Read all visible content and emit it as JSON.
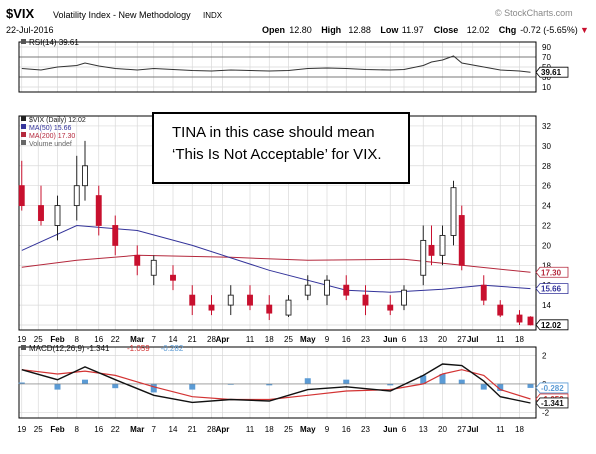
{
  "header": {
    "symbol": "$VIX",
    "name": "Volatility Index - New Methodology",
    "exchange": "INDX",
    "date": "22-Jul-2016",
    "watermark": "© StockCharts.com",
    "stats": [
      {
        "label": "Open",
        "value": "12.80"
      },
      {
        "label": "High",
        "value": "12.88"
      },
      {
        "label": "Low",
        "value": "11.97"
      },
      {
        "label": "Close",
        "value": "12.02"
      },
      {
        "label": "Chg",
        "value": "-0.72 (-5.65%)"
      }
    ],
    "down_marker": "▼"
  },
  "annotation": {
    "line1": "TINA in this case should mean",
    "line2": "‘This Is Not Acceptable’ for VIX."
  },
  "colors": {
    "up": "#222222",
    "down": "#c8102e",
    "ma50": "#33339a",
    "ma200": "#b4283c",
    "macd": "#111111",
    "signal": "#d33333",
    "histogram": "#5b9bd5",
    "rsi": "#333333",
    "grid": "#d9d9d9"
  },
  "chart_data": [
    {
      "type": "line",
      "panel": "RSI",
      "legend": "RSI(14) 39.61",
      "ylim": [
        0,
        100
      ],
      "yticks": [
        10,
        30,
        50,
        70,
        90
      ],
      "reference_lines": [
        30,
        70
      ],
      "last_label": "39.61",
      "series": [
        {
          "name": "RSI(14)",
          "x": [
            "2016-01-19",
            "2016-01-26",
            "2016-02-01",
            "2016-02-08",
            "2016-02-11",
            "2016-02-16",
            "2016-02-22",
            "2016-03-01",
            "2016-03-07",
            "2016-03-14",
            "2016-03-21",
            "2016-03-28",
            "2016-04-04",
            "2016-04-11",
            "2016-04-18",
            "2016-04-25",
            "2016-05-02",
            "2016-05-09",
            "2016-05-16",
            "2016-05-23",
            "2016-06-01",
            "2016-06-06",
            "2016-06-13",
            "2016-06-16",
            "2016-06-20",
            "2016-06-24",
            "2016-06-27",
            "2016-07-05",
            "2016-07-11",
            "2016-07-18",
            "2016-07-22"
          ],
          "values": [
            47,
            44,
            50,
            53,
            58,
            52,
            47,
            44,
            47,
            45,
            43,
            42,
            44,
            43,
            42,
            43,
            47,
            48,
            47,
            45,
            44,
            45,
            53,
            60,
            64,
            72,
            58,
            50,
            44,
            42,
            39.61
          ]
        }
      ]
    },
    {
      "type": "candlestick",
      "panel": "Price",
      "legend": [
        {
          "label": "$VIX (Daily) 12.02",
          "color": "#222222"
        },
        {
          "label": "MA(50) 15.66",
          "color": "#33339a"
        },
        {
          "label": "MA(200) 17.30",
          "color": "#b4283c"
        },
        {
          "label": "Volume undef",
          "color": "#666666"
        }
      ],
      "ylim": [
        11.5,
        33
      ],
      "yticks": [
        12,
        14,
        16,
        18,
        20,
        22,
        24,
        26,
        28,
        30,
        32
      ],
      "price_labels": [
        {
          "text": "17.30",
          "value": 17.3,
          "color": "#b4283c"
        },
        {
          "text": "15.66",
          "value": 15.66,
          "color": "#33339a"
        },
        {
          "text": "12.02",
          "value": 12.02,
          "color": "#000000"
        }
      ],
      "candles": [
        {
          "d": "2016-01-19",
          "o": 26,
          "h": 28.5,
          "l": 23.5,
          "c": 24
        },
        {
          "d": "2016-01-26",
          "o": 24,
          "h": 26,
          "l": 22,
          "c": 22.5
        },
        {
          "d": "2016-02-01",
          "o": 22,
          "h": 25,
          "l": 20.5,
          "c": 24
        },
        {
          "d": "2016-02-08",
          "o": 24,
          "h": 29,
          "l": 22.5,
          "c": 26
        },
        {
          "d": "2016-02-11",
          "o": 26,
          "h": 30.5,
          "l": 24.5,
          "c": 28
        },
        {
          "d": "2016-02-16",
          "o": 25,
          "h": 26,
          "l": 21,
          "c": 22
        },
        {
          "d": "2016-02-22",
          "o": 22,
          "h": 23,
          "l": 19,
          "c": 20
        },
        {
          "d": "2016-03-01",
          "o": 19,
          "h": 20,
          "l": 17,
          "c": 18
        },
        {
          "d": "2016-03-07",
          "o": 17,
          "h": 19,
          "l": 16,
          "c": 18.5
        },
        {
          "d": "2016-03-14",
          "o": 17,
          "h": 18,
          "l": 15.5,
          "c": 16.5
        },
        {
          "d": "2016-03-21",
          "o": 15,
          "h": 16,
          "l": 13,
          "c": 14
        },
        {
          "d": "2016-03-28",
          "o": 14,
          "h": 15,
          "l": 13,
          "c": 13.5
        },
        {
          "d": "2016-04-04",
          "o": 14,
          "h": 16,
          "l": 13,
          "c": 15
        },
        {
          "d": "2016-04-11",
          "o": 15,
          "h": 16,
          "l": 13.5,
          "c": 14
        },
        {
          "d": "2016-04-18",
          "o": 14,
          "h": 15,
          "l": 12.5,
          "c": 13.2
        },
        {
          "d": "2016-04-25",
          "o": 13,
          "h": 15,
          "l": 12.8,
          "c": 14.5
        },
        {
          "d": "2016-05-02",
          "o": 15,
          "h": 17,
          "l": 14.5,
          "c": 16
        },
        {
          "d": "2016-05-09",
          "o": 15,
          "h": 17,
          "l": 14,
          "c": 16.5
        },
        {
          "d": "2016-05-16",
          "o": 16,
          "h": 17,
          "l": 14.5,
          "c": 15
        },
        {
          "d": "2016-05-23",
          "o": 15,
          "h": 16,
          "l": 13,
          "c": 14
        },
        {
          "d": "2016-06-01",
          "o": 14,
          "h": 15,
          "l": 13,
          "c": 13.5
        },
        {
          "d": "2016-06-06",
          "o": 14,
          "h": 16,
          "l": 13.5,
          "c": 15.5
        },
        {
          "d": "2016-06-13",
          "o": 17,
          "h": 22,
          "l": 16,
          "c": 20.5
        },
        {
          "d": "2016-06-16",
          "o": 20,
          "h": 22,
          "l": 18,
          "c": 19
        },
        {
          "d": "2016-06-20",
          "o": 19,
          "h": 22,
          "l": 18,
          "c": 21
        },
        {
          "d": "2016-06-24",
          "o": 21,
          "h": 26.5,
          "l": 20,
          "c": 25.8
        },
        {
          "d": "2016-06-27",
          "o": 23,
          "h": 24,
          "l": 17.5,
          "c": 18
        },
        {
          "d": "2016-07-05",
          "o": 16,
          "h": 17,
          "l": 14,
          "c": 14.5
        },
        {
          "d": "2016-07-11",
          "o": 14,
          "h": 14.5,
          "l": 12.8,
          "c": 13
        },
        {
          "d": "2016-07-18",
          "o": 13,
          "h": 13.5,
          "l": 12,
          "c": 12.3
        },
        {
          "d": "2016-07-22",
          "o": 12.8,
          "h": 12.88,
          "l": 11.97,
          "c": 12.02
        }
      ],
      "ma50": {
        "x": [
          "2016-01-19",
          "2016-02-08",
          "2016-03-01",
          "2016-03-21",
          "2016-04-18",
          "2016-05-16",
          "2016-06-01",
          "2016-06-20",
          "2016-07-05",
          "2016-07-22"
        ],
        "values": [
          19.5,
          22,
          21.5,
          20,
          17.5,
          15.5,
          15.3,
          15.6,
          16,
          15.66
        ]
      },
      "ma200": {
        "x": [
          "2016-01-19",
          "2016-02-08",
          "2016-03-01",
          "2016-04-04",
          "2016-05-02",
          "2016-06-06",
          "2016-06-27",
          "2016-07-22"
        ],
        "values": [
          17.8,
          18.5,
          19,
          18.8,
          18.5,
          18.6,
          18,
          17.3
        ]
      }
    },
    {
      "type": "line",
      "panel": "MACD",
      "legend": [
        {
          "label": "MACD(12,26,9) -1.341",
          "color": "#111111"
        },
        {
          "label": "-1.059",
          "color": "#d33333"
        },
        {
          "label": "-0.282",
          "color": "#5b9bd5"
        }
      ],
      "ylim": [
        -2.4,
        2.6
      ],
      "yticks": [
        -2,
        0,
        2
      ],
      "value_labels": [
        {
          "text": "-0.282",
          "value": -0.282,
          "color": "#5b9bd5"
        },
        {
          "text": "-1.059",
          "value": -1.059,
          "color": "#d33333"
        },
        {
          "text": "-1.341",
          "value": -1.341,
          "color": "#111111"
        }
      ],
      "x": [
        "2016-01-19",
        "2016-02-01",
        "2016-02-11",
        "2016-02-22",
        "2016-03-07",
        "2016-03-21",
        "2016-04-04",
        "2016-04-18",
        "2016-05-02",
        "2016-05-16",
        "2016-06-01",
        "2016-06-13",
        "2016-06-20",
        "2016-06-27",
        "2016-07-05",
        "2016-07-11",
        "2016-07-22"
      ],
      "series": [
        {
          "name": "MACD(12,26,9)",
          "values": [
            1.0,
            0.3,
            1.2,
            0.3,
            -0.8,
            -1.3,
            -1.1,
            -1.2,
            -0.4,
            -0.2,
            -0.5,
            0.6,
            1.4,
            1.3,
            0.2,
            -0.9,
            -1.341
          ]
        },
        {
          "name": "Signal",
          "values": [
            1.0,
            0.7,
            0.9,
            0.6,
            -0.2,
            -0.9,
            -1.1,
            -1.1,
            -0.8,
            -0.5,
            -0.4,
            0.0,
            0.7,
            1.0,
            0.6,
            -0.4,
            -1.059
          ]
        },
        {
          "name": "Histogram",
          "values": [
            0.1,
            -0.4,
            0.3,
            -0.3,
            -0.6,
            -0.4,
            0.0,
            -0.1,
            0.4,
            0.3,
            -0.1,
            0.6,
            0.7,
            0.3,
            -0.4,
            -0.5,
            -0.282
          ]
        }
      ]
    }
  ],
  "x_axis": {
    "start": "2016-01-18",
    "end": "2016-07-24",
    "ticks": [
      {
        "d": "2016-01-19",
        "label": "19"
      },
      {
        "d": "2016-01-25",
        "label": "25"
      },
      {
        "d": "2016-02-01",
        "label": "Feb",
        "bold": true
      },
      {
        "d": "2016-02-08",
        "label": "8"
      },
      {
        "d": "2016-02-16",
        "label": "16"
      },
      {
        "d": "2016-02-22",
        "label": "22"
      },
      {
        "d": "2016-03-01",
        "label": "Mar",
        "bold": true
      },
      {
        "d": "2016-03-07",
        "label": "7"
      },
      {
        "d": "2016-03-14",
        "label": "14"
      },
      {
        "d": "2016-03-21",
        "label": "21"
      },
      {
        "d": "2016-03-28",
        "label": "28"
      },
      {
        "d": "2016-04-01",
        "label": "Apr",
        "bold": true
      },
      {
        "d": "2016-04-11",
        "label": "11"
      },
      {
        "d": "2016-04-18",
        "label": "18"
      },
      {
        "d": "2016-04-25",
        "label": "25"
      },
      {
        "d": "2016-05-02",
        "label": "May",
        "bold": true
      },
      {
        "d": "2016-05-09",
        "label": "9"
      },
      {
        "d": "2016-05-16",
        "label": "16"
      },
      {
        "d": "2016-05-23",
        "label": "23"
      },
      {
        "d": "2016-06-01",
        "label": "Jun",
        "bold": true
      },
      {
        "d": "2016-06-06",
        "label": "6"
      },
      {
        "d": "2016-06-13",
        "label": "13"
      },
      {
        "d": "2016-06-20",
        "label": "20"
      },
      {
        "d": "2016-06-27",
        "label": "27"
      },
      {
        "d": "2016-07-01",
        "label": "Jul",
        "bold": true
      },
      {
        "d": "2016-07-11",
        "label": "11"
      },
      {
        "d": "2016-07-18",
        "label": "18"
      }
    ]
  }
}
